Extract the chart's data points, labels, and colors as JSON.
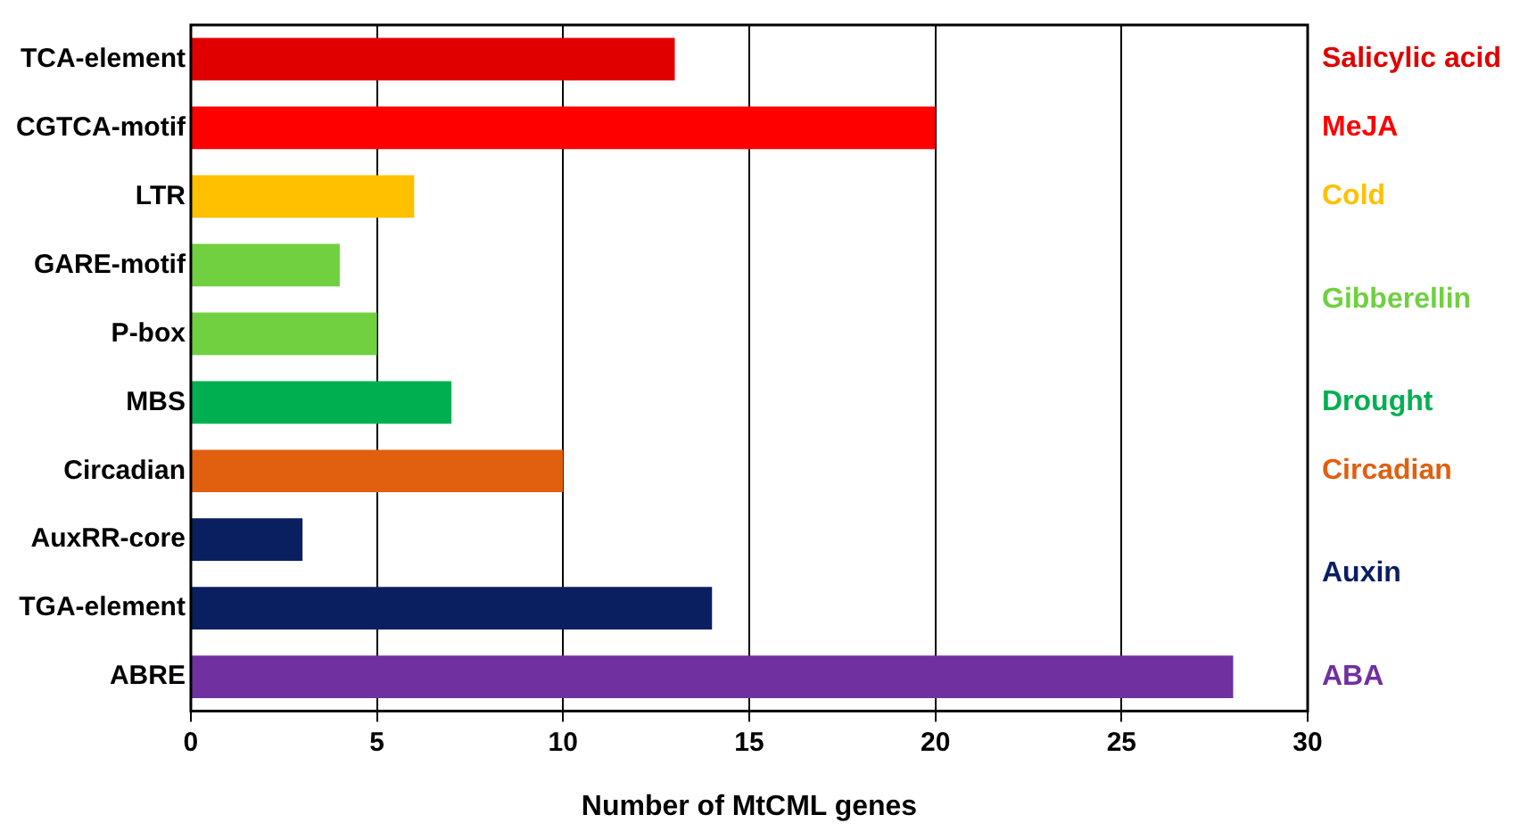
{
  "chart_data": {
    "type": "bar",
    "orientation": "horizontal",
    "xlabel": "Number of MtCML genes",
    "categories": [
      "TCA-element",
      "CGTCA-motif",
      "LTR",
      "GARE-motif",
      "P-box",
      "MBS",
      "Circadian",
      "AuxRR-core",
      "TGA-element",
      "ABRE"
    ],
    "series": [
      {
        "name": "Salicylic acid",
        "color": "#e00000",
        "values": [
          13,
          null,
          null,
          null,
          null,
          null,
          null,
          null,
          null,
          null
        ]
      },
      {
        "name": "MeJA",
        "color": "#ff0000",
        "values": [
          null,
          20,
          null,
          null,
          null,
          null,
          null,
          null,
          null,
          null
        ]
      },
      {
        "name": "Cold",
        "color": "#ffc000",
        "values": [
          null,
          null,
          6,
          null,
          null,
          null,
          null,
          null,
          null,
          null
        ]
      },
      {
        "name": "Gibberellin",
        "color": "#70d040",
        "values": [
          null,
          null,
          null,
          4,
          5,
          null,
          null,
          null,
          null,
          null
        ]
      },
      {
        "name": "Drought",
        "color": "#00b050",
        "values": [
          null,
          null,
          null,
          null,
          null,
          7,
          null,
          null,
          null,
          null
        ]
      },
      {
        "name": "Circadian",
        "color": "#e06010",
        "values": [
          null,
          null,
          null,
          null,
          null,
          null,
          10,
          null,
          null,
          null
        ]
      },
      {
        "name": "Auxin",
        "color": "#0a1f60",
        "values": [
          null,
          null,
          null,
          null,
          null,
          null,
          null,
          3,
          14,
          null
        ]
      },
      {
        "name": "ABA",
        "color": "#7030a0",
        "values": [
          null,
          null,
          null,
          null,
          null,
          null,
          null,
          null,
          null,
          28
        ]
      }
    ],
    "xlim": [
      0,
      30
    ],
    "xticks": [
      0,
      5,
      10,
      15,
      20,
      25,
      30
    ],
    "grid": "x",
    "legend": false
  }
}
